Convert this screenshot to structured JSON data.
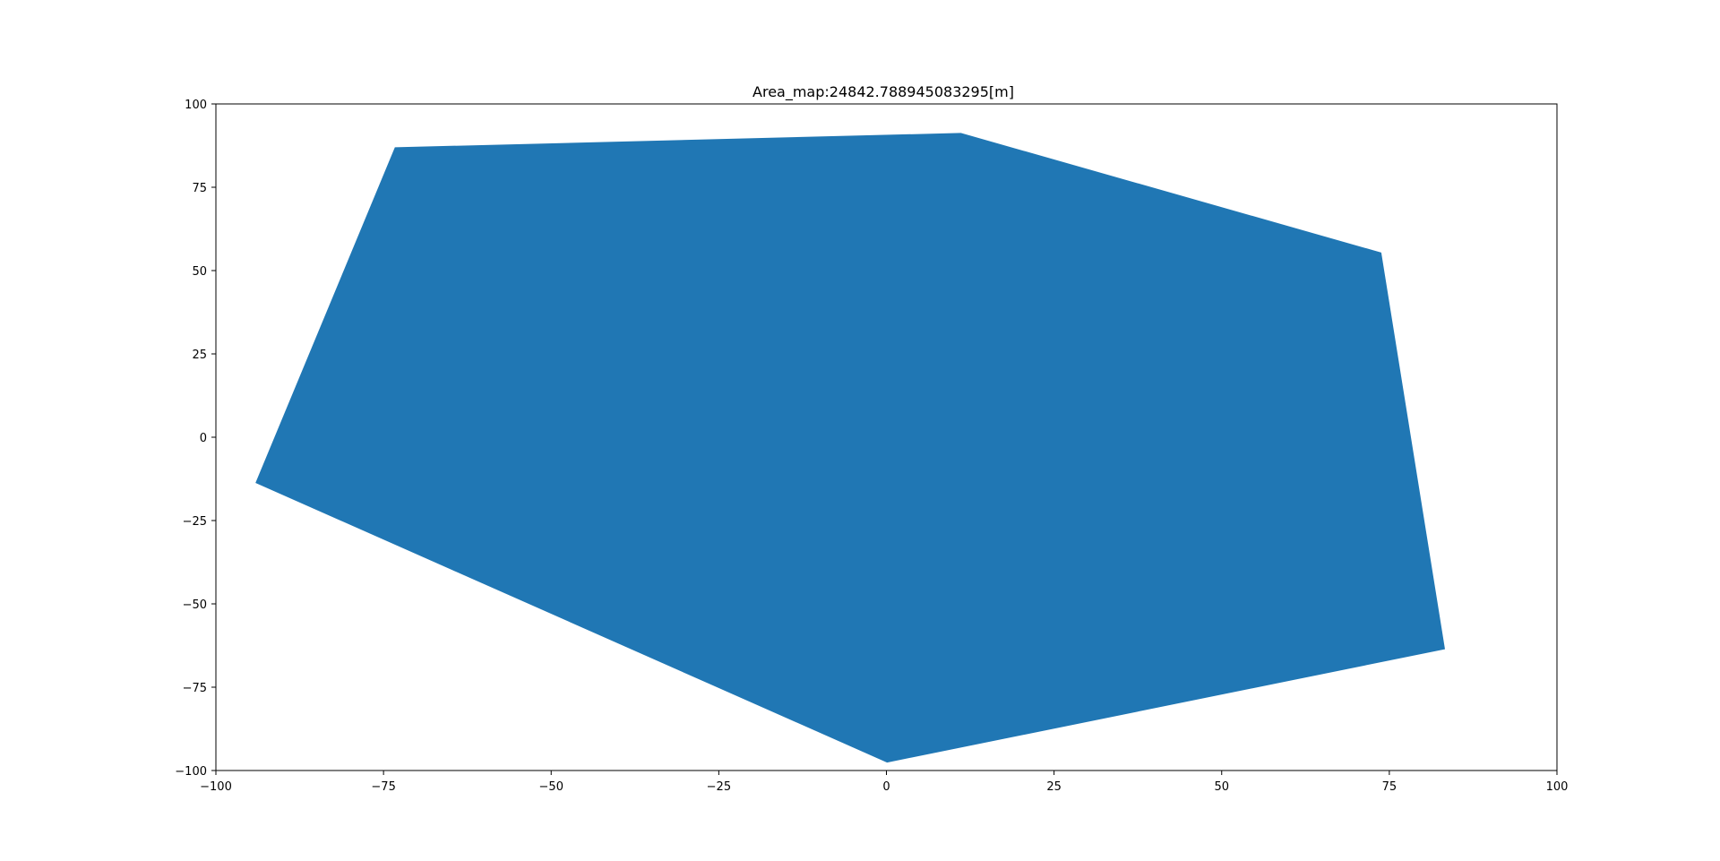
{
  "chart_data": {
    "type": "area",
    "title": "Area_map:24842.788945083295[m]",
    "xlabel": "",
    "ylabel": "",
    "xlim": [
      -100,
      100
    ],
    "ylim": [
      -100,
      100
    ],
    "grid": false,
    "fill_color": "#2077b4",
    "x_ticks": [
      -100,
      -75,
      -50,
      -25,
      0,
      25,
      50,
      75,
      100
    ],
    "y_ticks": [
      -100,
      -75,
      -50,
      -25,
      0,
      25,
      50,
      75,
      100
    ],
    "x_tick_labels": [
      "−100",
      "−75",
      "−50",
      "−25",
      "0",
      "25",
      "50",
      "75",
      "100"
    ],
    "y_tick_labels": [
      "−100",
      "−75",
      "−50",
      "−25",
      "0",
      "25",
      "50",
      "75",
      "100"
    ],
    "polygon": {
      "x": [
        -73.3,
        11.1,
        73.8,
        83.3,
        0.1,
        -94.1
      ],
      "y": [
        87.0,
        91.3,
        55.4,
        -63.6,
        -97.6,
        -13.7
      ]
    }
  }
}
